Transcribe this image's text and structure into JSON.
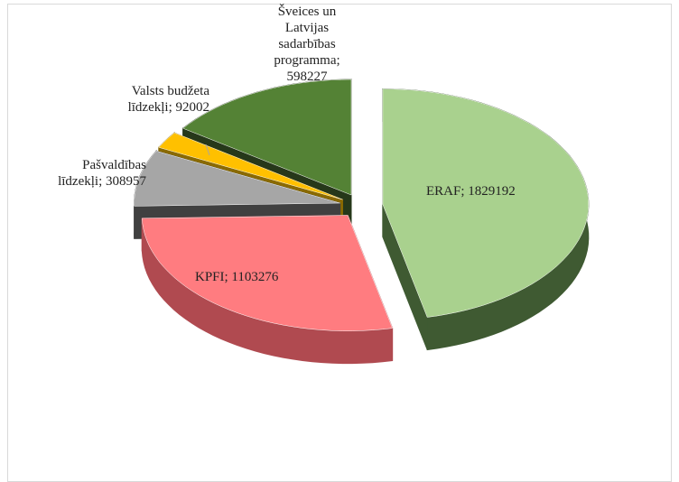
{
  "chart_data": {
    "type": "pie3d",
    "values": [
      1829192,
      1103276,
      308957,
      92002,
      598227
    ],
    "value_labels": [
      "ERAF; 1829192",
      "KPFI; 1103276",
      "Pašvaldības\nlīdzekļi; 308957",
      "Valsts budžeta\nlīdzekļi; 92002",
      "Šveices un\nLatvijas\nsadarbības\nprogramma;\n598227"
    ],
    "colors": [
      "#a9d18e",
      "#ff7c80",
      "#a6a6a6",
      "#ffc000",
      "#548235"
    ],
    "side_colors": [
      "#3f5a32",
      "#b04a50",
      "#404040",
      "#8a6a00",
      "#26381a"
    ]
  }
}
